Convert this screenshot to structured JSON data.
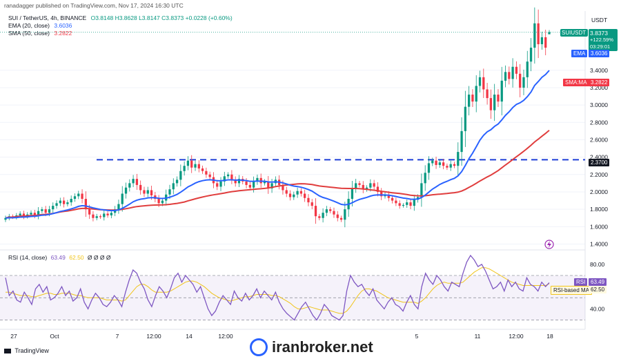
{
  "header": {
    "published_by": "ranadagger published on TradingView.com, Nov 17, 2024 16:30 UTC"
  },
  "legend": {
    "symbol_line": "SUI / TetherUS, 4h, BINANCE",
    "ohlc": "O3.8148 H3.8628 L3.8147 C3.8373 +0.0228 (+0.60%)",
    "ema_label": "EMA (20, close)",
    "ema_value": "3.6036",
    "sma_label": "SMA (50, close)",
    "sma_value": "3.2822",
    "rsi_label": "RSI (14, close)",
    "rsi_value": "63.49",
    "rsi_ma_value": "62.50",
    "rsi_extra": "Ø Ø Ø Ø"
  },
  "price_axis": {
    "currency": "USDT"
  },
  "badges": {
    "symbol": "SUIUSDT",
    "price": "3.8373",
    "change": "+122.59%",
    "countdown": "03:29:01",
    "ema_tag": "EMA",
    "ema_value": "3.6036",
    "sma_tag": "SMA:MA",
    "sma_value": "3.2822",
    "level": "2.3700",
    "rsi_tag": "RSI",
    "rsi_value": "63.49",
    "rsi_ma_tag": "RSI-based MA",
    "rsi_ma_value": "62.50"
  },
  "footer": {
    "logo_text": "TradingView",
    "watermark": "iranbroker.net"
  },
  "colors": {
    "up": "#089981",
    "down": "#f23645",
    "ema": "#2962ff",
    "sma": "#e03d3d",
    "level": "#1f3fd6",
    "rsi": "#7e57c2",
    "rsi_ma": "#f0c419"
  },
  "chart_data": [
    {
      "type": "candlestick",
      "title": "SUI / TetherUS, 4h, BINANCE",
      "y_ticks": [
        1.4,
        1.6,
        1.8,
        2.0,
        2.2,
        2.4,
        2.6,
        2.8,
        3.0,
        3.2,
        3.4
      ],
      "ylim": [
        1.38,
        4.05
      ],
      "x_ticks": [
        "27",
        "Oct",
        "7",
        "12:00",
        "14",
        "12:00",
        "5",
        "11",
        "12:00",
        "18"
      ],
      "resistance_level": 2.37,
      "close": [
        1.7,
        1.72,
        1.71,
        1.73,
        1.75,
        1.72,
        1.74,
        1.76,
        1.73,
        1.78,
        1.8,
        1.76,
        1.8,
        1.84,
        1.87,
        1.9,
        1.86,
        1.88,
        1.92,
        1.95,
        1.98,
        1.92,
        1.8,
        1.74,
        1.7,
        1.72,
        1.71,
        1.75,
        1.73,
        1.76,
        1.8,
        1.86,
        1.98,
        2.05,
        2.1,
        2.15,
        2.08,
        2.02,
        1.98,
        2.02,
        1.96,
        1.92,
        1.87,
        1.9,
        1.97,
        2.03,
        2.1,
        2.14,
        2.24,
        2.3,
        2.36,
        2.28,
        2.32,
        2.27,
        2.24,
        2.2,
        2.17,
        2.1,
        2.06,
        2.12,
        2.18,
        2.2,
        2.14,
        2.1,
        2.15,
        2.12,
        2.08,
        2.05,
        2.12,
        2.16,
        2.1,
        2.12,
        2.04,
        2.1,
        2.14,
        2.08,
        2.02,
        1.98,
        1.94,
        1.97,
        2.01,
        1.98,
        1.93,
        1.88,
        1.84,
        1.72,
        1.7,
        1.76,
        1.8,
        1.78,
        1.74,
        1.7,
        1.68,
        1.8,
        1.92,
        2.04,
        2.1,
        2.08,
        2.03,
        2.05,
        2.1,
        2.06,
        2.0,
        1.95,
        1.97,
        1.93,
        1.9,
        1.87,
        1.84,
        1.85,
        1.88,
        1.84,
        1.91,
        1.94,
        2.1,
        2.22,
        2.33,
        2.36,
        2.31,
        2.34,
        2.3,
        2.28,
        2.32,
        2.3,
        2.46,
        2.7,
        2.98,
        3.12,
        3.04,
        3.22,
        3.32,
        3.18,
        3.08,
        2.94,
        3.12,
        3.04,
        3.28,
        3.38,
        3.3,
        3.44,
        3.36,
        3.2,
        3.32,
        3.5,
        3.66,
        3.94,
        3.7,
        3.78,
        3.66,
        3.84
      ],
      "ema_20": 3.6036,
      "sma_50": 3.2822,
      "latest": {
        "open": 3.8148,
        "high": 3.8628,
        "low": 3.8147,
        "close": 3.8373,
        "change": 0.0228,
        "change_pct": 0.6,
        "total_change_pct": 122.59
      }
    },
    {
      "type": "line",
      "title": "RSI (14, close)",
      "y_ticks": [
        40.0,
        80.0
      ],
      "ylim": [
        26,
        88
      ],
      "bands": {
        "upper": 70,
        "middle": 50,
        "lower": 30
      },
      "series": [
        {
          "name": "RSI",
          "values": [
            68,
            52,
            56,
            48,
            46,
            55,
            50,
            44,
            58,
            62,
            55,
            60,
            48,
            50,
            54,
            60,
            52,
            56,
            47,
            50,
            58,
            46,
            40,
            48,
            54,
            50,
            44,
            42,
            46,
            52,
            48,
            42,
            55,
            66,
            75,
            72,
            64,
            58,
            48,
            42,
            52,
            60,
            56,
            50,
            58,
            68,
            72,
            64,
            70,
            66,
            62,
            55,
            60,
            50,
            40,
            34,
            38,
            46,
            52,
            48,
            44,
            56,
            50,
            47,
            54,
            48,
            52,
            58,
            50,
            56,
            52,
            48,
            55,
            46,
            40,
            36,
            33,
            30,
            36,
            42,
            46,
            40,
            34,
            30,
            36,
            44,
            40,
            34,
            32,
            30,
            34,
            56,
            70,
            64,
            60,
            62,
            56,
            52,
            58,
            48,
            44,
            40,
            46,
            50,
            44,
            42,
            38,
            46,
            52,
            44,
            40,
            60,
            72,
            66,
            62,
            70,
            66,
            60,
            56,
            64,
            62,
            60,
            72,
            82,
            88,
            84,
            78,
            80,
            74,
            66,
            58,
            60,
            64,
            56,
            66,
            60,
            64,
            58,
            56,
            68,
            62,
            60,
            56,
            64,
            60,
            63.49
          ]
        },
        {
          "name": "RSI-based MA",
          "values": [
            55,
            55,
            54,
            53,
            52,
            52,
            52,
            51,
            51,
            52,
            53,
            54,
            54,
            53,
            53,
            54,
            54,
            54,
            53,
            52,
            52,
            51,
            50,
            50,
            50,
            50,
            49,
            48,
            48,
            48,
            48,
            47,
            48,
            52,
            56,
            60,
            62,
            62,
            60,
            57,
            55,
            55,
            55,
            55,
            56,
            58,
            60,
            62,
            64,
            65,
            65,
            64,
            62,
            60,
            57,
            54,
            52,
            50,
            49,
            48,
            47,
            48,
            49,
            50,
            51,
            51,
            52,
            53,
            53,
            53,
            53,
            52,
            52,
            51,
            49,
            47,
            45,
            42,
            40,
            40,
            41,
            42,
            41,
            40,
            39,
            39,
            39,
            38,
            37,
            36,
            36,
            38,
            42,
            47,
            52,
            56,
            58,
            58,
            57,
            56,
            54,
            52,
            50,
            49,
            48,
            47,
            46,
            46,
            46,
            46,
            45,
            47,
            50,
            54,
            58,
            61,
            63,
            64,
            63,
            63,
            63,
            63,
            64,
            67,
            70,
            73,
            75,
            77,
            77,
            76,
            74,
            72,
            70,
            68,
            66,
            64,
            63,
            62,
            61,
            61,
            61,
            61,
            61,
            61,
            61,
            62.5
          ]
        }
      ],
      "latest": {
        "rsi": 63.49,
        "rsi_ma": 62.5
      }
    }
  ]
}
